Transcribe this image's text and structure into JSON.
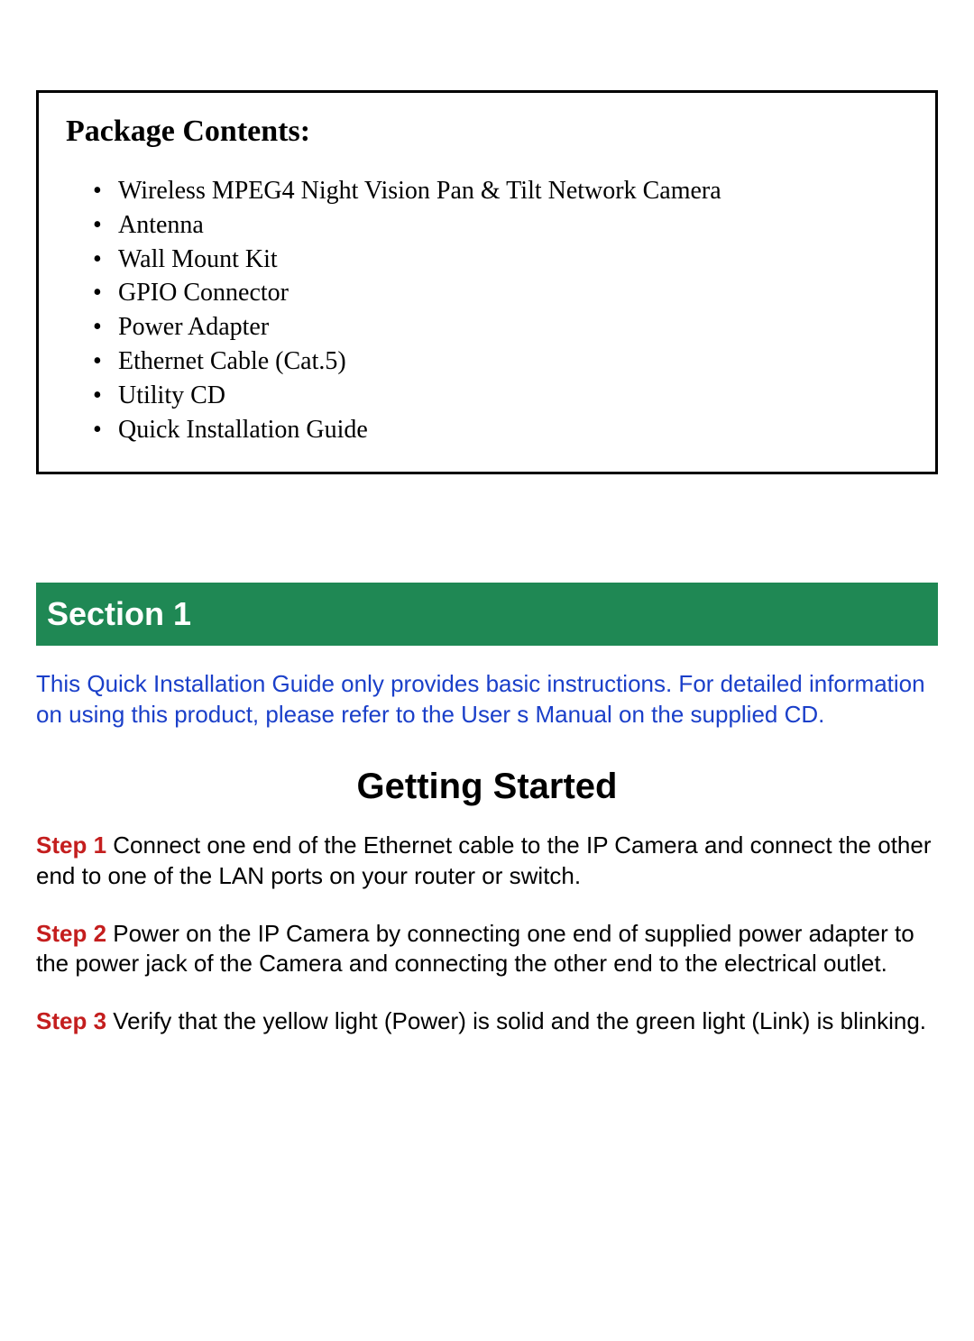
{
  "package": {
    "title": "Package Contents:",
    "items": [
      "Wireless MPEG4 Night Vision Pan & Tilt Network Camera",
      "Antenna",
      "Wall Mount Kit",
      "GPIO Connector",
      "Power Adapter",
      "Ethernet Cable (Cat.5)",
      "Utility CD",
      "Quick Installation Guide"
    ]
  },
  "section_bar": "Section 1",
  "note": "This Quick Installation Guide only provides basic instructions.  For detailed information on using this product, please refer to the User s Manual on the supplied CD.",
  "getting_started_title": "Getting Started",
  "steps": [
    {
      "label": "Step 1",
      "text": " Connect one end of the Ethernet cable to the IP Camera and connect the other end to one of the LAN ports on your router or switch."
    },
    {
      "label": "Step 2",
      "text": " Power on the IP Camera by connecting one end of supplied power adapter to the power jack of the Camera and connecting the other end to the electrical outlet."
    },
    {
      "label": "Step 3",
      "text": " Verify that the yellow light (Power) is solid and the green light (Link) is blinking."
    }
  ],
  "colors": {
    "section_bg": "#1f8854",
    "note_color": "#1a3fc9",
    "step_label_color": "#c41e1e",
    "border_color": "#000000",
    "background": "#ffffff"
  }
}
